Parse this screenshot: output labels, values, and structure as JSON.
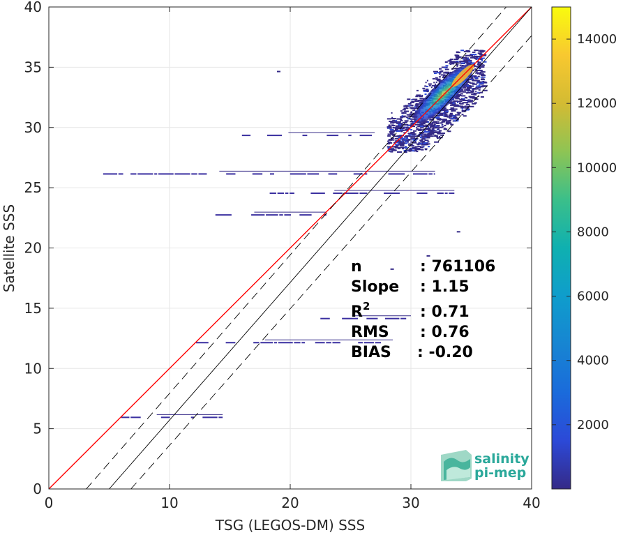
{
  "chart_data": {
    "type": "heatmap",
    "xlabel": "TSG (LEGOS-DM) SSS",
    "ylabel": "Satellite SSS",
    "xlim": [
      0,
      40
    ],
    "ylim": [
      0,
      40
    ],
    "x_ticks": [
      "0",
      "10",
      "20",
      "30",
      "40"
    ],
    "y_ticks": [
      "0",
      "5",
      "10",
      "15",
      "20",
      "25",
      "30",
      "35",
      "40"
    ],
    "grid": true,
    "colorbar": {
      "ticks": [
        "2000",
        "4000",
        "6000",
        "8000",
        "10000",
        "12000",
        "14000"
      ],
      "tick_values": [
        2000,
        4000,
        6000,
        8000,
        10000,
        12000,
        14000
      ],
      "range": [
        0,
        15000
      ],
      "colormap": "parula"
    },
    "reference_lines": [
      {
        "name": "one-to-one",
        "color": "#ff0000",
        "style": "solid",
        "points": [
          [
            0,
            0
          ],
          [
            40,
            40
          ]
        ]
      },
      {
        "name": "regression",
        "color": "#000000",
        "style": "solid",
        "points": [
          [
            5,
            0
          ],
          [
            40,
            40
          ]
        ]
      },
      {
        "name": "regression-upper",
        "color": "#000000",
        "style": "dashed",
        "points": [
          [
            3.1,
            0
          ],
          [
            37.9,
            40
          ]
        ]
      },
      {
        "name": "regression-lower",
        "color": "#000000",
        "style": "dashed",
        "points": [
          [
            6.8,
            0
          ],
          [
            42.1,
            40
          ]
        ]
      }
    ],
    "density_cloud": {
      "center": [
        32.5,
        32.5
      ],
      "x_range": [
        28,
        36
      ],
      "y_range": [
        28,
        36.5
      ],
      "peak_count": 15000
    },
    "sparse_bands": [
      {
        "y": 22.8,
        "x_start": 13.8,
        "x_end": 23
      },
      {
        "y": 24.6,
        "x_start": 18.3,
        "x_end": 33.6
      },
      {
        "y": 26.2,
        "x_start": 4.5,
        "x_end": 32
      },
      {
        "y": 29.4,
        "x_start": 16,
        "x_end": 27
      },
      {
        "y": 14.2,
        "x_start": 22.5,
        "x_end": 30
      },
      {
        "y": 12.2,
        "x_start": 12.2,
        "x_end": 28.5
      },
      {
        "y": 6.0,
        "x_start": 6,
        "x_end": 14.4
      }
    ],
    "stats": [
      {
        "label": "n",
        "value": ": 761106"
      },
      {
        "label": "Slope",
        "value": ": 1.15"
      },
      {
        "label": "R",
        "sup": "2",
        "value": ": 0.71"
      },
      {
        "label": "RMS",
        "value": ": 0.76"
      },
      {
        "label": "BIAS",
        "value": ": -0.20"
      }
    ],
    "logo": {
      "line1": "salinity",
      "line2": "pi-mep"
    }
  }
}
